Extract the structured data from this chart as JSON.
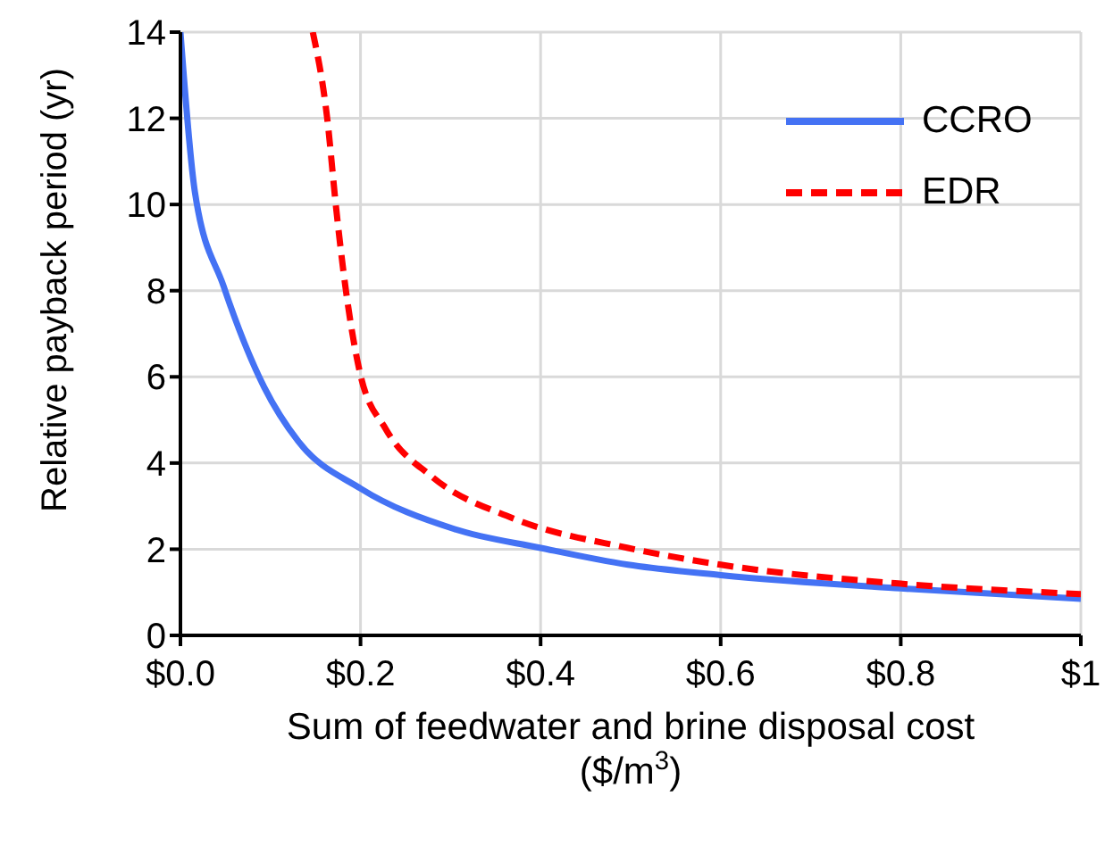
{
  "chart_data": {
    "type": "line",
    "xlabel": "Sum of feedwater and brine disposal cost ($/m$^{3}$)",
    "ylabel": "Relative payback period (yr)",
    "xlim": [
      0,
      1
    ],
    "xticks": [
      {
        "value": 0,
        "label": "$0.0"
      },
      {
        "value": 0.2,
        "label": "$0.2"
      },
      {
        "value": 0.4,
        "label": "$0.4"
      },
      {
        "value": 0.6,
        "label": "$0.6"
      },
      {
        "value": 0.8,
        "label": "$0.8"
      },
      {
        "value": 1,
        "label": "$1"
      }
    ],
    "ylim": [
      0,
      14
    ],
    "yticks": [
      0,
      2,
      4,
      6,
      8,
      10,
      12,
      14
    ],
    "grid": true,
    "legend": "top right",
    "marker": "none",
    "series": [
      {
        "name": "CCRO",
        "color": "#4472f4",
        "line_style": "solid",
        "x": [
          0,
          0.016,
          0.048,
          0.093,
          0.131,
          0.2,
          0.304,
          0.4,
          0.497,
          0.6,
          0.8,
          1
        ],
        "values": [
          14,
          10.3,
          8.1,
          5.76,
          4.5,
          3.41,
          2.47,
          2.03,
          1.64,
          1.4,
          1.09,
          0.85
        ]
      },
      {
        "name": "EDR",
        "color": "#ff0000",
        "line_style": "dashed",
        "x": [
          0.147,
          0.163,
          0.173,
          0.184,
          0.2,
          0.228,
          0.279,
          0.369,
          0.497,
          0.6,
          0.8,
          1
        ],
        "values": [
          14,
          12,
          9.9,
          7.97,
          6.04,
          4.79,
          3.69,
          2.72,
          2.03,
          1.64,
          1.2,
          0.96
        ]
      }
    ]
  }
}
